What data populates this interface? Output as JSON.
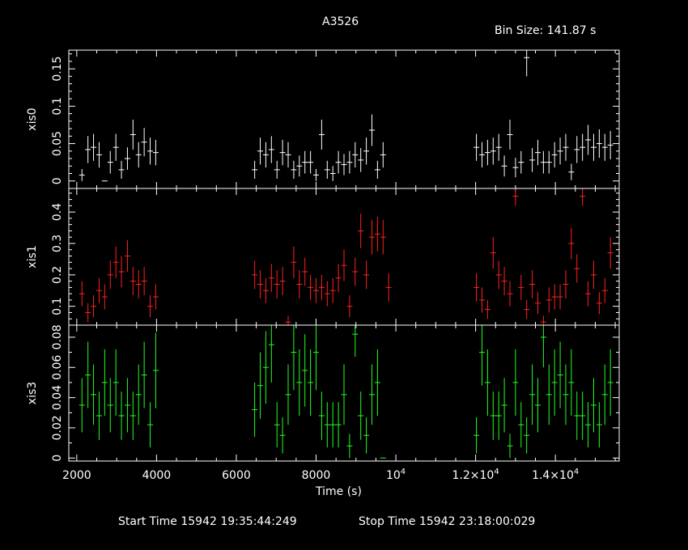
{
  "title": "A3526",
  "bin_size_label": "Bin Size: 141.87 s",
  "xlabel": "Time (s)",
  "footer": {
    "start": "Start Time 15942 19:35:44:249",
    "stop": "Stop Time 15942 23:18:00:029"
  },
  "colors": {
    "background": "#000000",
    "frame": "#ffffff",
    "xis0": "#ffffff",
    "xis1": "#ff2020",
    "xis3": "#20ff20"
  },
  "chart_data": {
    "type": "scatter",
    "x_range": [
      1800,
      15600
    ],
    "x_ticks": [
      {
        "v": 2000,
        "label": "2000"
      },
      {
        "v": 4000,
        "label": "4000"
      },
      {
        "v": 6000,
        "label": "6000"
      },
      {
        "v": 8000,
        "label": "8000"
      },
      {
        "v": 10000,
        "label": "10",
        "exp": "4"
      },
      {
        "v": 12000,
        "label": "1.2×10",
        "exp": "4"
      },
      {
        "v": 14000,
        "label": "1.4×10",
        "exp": "4"
      }
    ],
    "x_minor_step": 500,
    "xerr": 71,
    "panels": [
      {
        "name": "xis0",
        "color": "#ffffff",
        "ylim": [
          -0.01,
          0.175
        ],
        "yticks": [
          {
            "v": 0,
            "label": "0"
          },
          {
            "v": 0.05,
            "label": "0.05"
          },
          {
            "v": 0.1,
            "label": "0.1"
          },
          {
            "v": 0.15,
            "label": "0.15"
          }
        ],
        "minor_step": 0.01,
        "points": [
          [
            2130,
            0.008,
            0.008
          ],
          [
            2280,
            0.042,
            0.018
          ],
          [
            2420,
            0.045,
            0.018
          ],
          [
            2560,
            0.035,
            0.017
          ],
          [
            2700,
            0.0,
            0.0
          ],
          [
            2840,
            0.025,
            0.015
          ],
          [
            2980,
            0.045,
            0.018
          ],
          [
            3120,
            0.015,
            0.012
          ],
          [
            3270,
            0.03,
            0.015
          ],
          [
            3410,
            0.062,
            0.02
          ],
          [
            3550,
            0.035,
            0.017
          ],
          [
            3690,
            0.052,
            0.019
          ],
          [
            3840,
            0.04,
            0.018
          ],
          [
            3980,
            0.038,
            0.017
          ],
          [
            6460,
            0.015,
            0.012
          ],
          [
            6600,
            0.04,
            0.018
          ],
          [
            6740,
            0.035,
            0.017
          ],
          [
            6880,
            0.042,
            0.018
          ],
          [
            7020,
            0.015,
            0.012
          ],
          [
            7160,
            0.038,
            0.017
          ],
          [
            7300,
            0.035,
            0.017
          ],
          [
            7440,
            0.015,
            0.012
          ],
          [
            7580,
            0.02,
            0.014
          ],
          [
            7720,
            0.025,
            0.015
          ],
          [
            7860,
            0.025,
            0.015
          ],
          [
            8000,
            0.008,
            0.008
          ],
          [
            8140,
            0.062,
            0.02
          ],
          [
            8280,
            0.015,
            0.012
          ],
          [
            8420,
            0.01,
            0.01
          ],
          [
            8560,
            0.025,
            0.015
          ],
          [
            8700,
            0.022,
            0.014
          ],
          [
            8840,
            0.025,
            0.015
          ],
          [
            8980,
            0.035,
            0.017
          ],
          [
            9120,
            0.028,
            0.016
          ],
          [
            9260,
            0.04,
            0.018
          ],
          [
            9400,
            0.068,
            0.021
          ],
          [
            9540,
            0.015,
            0.012
          ],
          [
            9680,
            0.035,
            0.017
          ],
          [
            12020,
            0.045,
            0.018
          ],
          [
            12160,
            0.035,
            0.017
          ],
          [
            12300,
            0.038,
            0.017
          ],
          [
            12440,
            0.04,
            0.018
          ],
          [
            12580,
            0.045,
            0.018
          ],
          [
            12720,
            0.02,
            0.014
          ],
          [
            12860,
            0.062,
            0.02
          ],
          [
            13000,
            0.018,
            0.013
          ],
          [
            13140,
            0.025,
            0.015
          ],
          [
            13280,
            0.165,
            0.025
          ],
          [
            13420,
            0.028,
            0.016
          ],
          [
            13560,
            0.038,
            0.017
          ],
          [
            13700,
            0.025,
            0.015
          ],
          [
            13840,
            0.025,
            0.015
          ],
          [
            13980,
            0.035,
            0.017
          ],
          [
            14120,
            0.04,
            0.018
          ],
          [
            14260,
            0.045,
            0.018
          ],
          [
            14400,
            0.012,
            0.011
          ],
          [
            14540,
            0.042,
            0.018
          ],
          [
            14680,
            0.045,
            0.018
          ],
          [
            14820,
            0.055,
            0.02
          ],
          [
            14960,
            0.045,
            0.018
          ],
          [
            15100,
            0.05,
            0.019
          ],
          [
            15240,
            0.045,
            0.018
          ],
          [
            15380,
            0.048,
            0.019
          ]
        ]
      },
      {
        "name": "xis1",
        "color": "#ff2020",
        "ylim": [
          0.04,
          0.475
        ],
        "yticks": [
          {
            "v": 0.1,
            "label": "0.1"
          },
          {
            "v": 0.2,
            "label": "0.2"
          },
          {
            "v": 0.3,
            "label": "0.3"
          },
          {
            "v": 0.4,
            "label": "0.4"
          }
        ],
        "minor_step": 0.02,
        "points": [
          [
            2130,
            0.14,
            0.04
          ],
          [
            2280,
            0.08,
            0.03
          ],
          [
            2420,
            0.1,
            0.035
          ],
          [
            2560,
            0.15,
            0.04
          ],
          [
            2700,
            0.13,
            0.04
          ],
          [
            2840,
            0.2,
            0.045
          ],
          [
            2980,
            0.24,
            0.05
          ],
          [
            3120,
            0.21,
            0.05
          ],
          [
            3270,
            0.26,
            0.05
          ],
          [
            3410,
            0.18,
            0.045
          ],
          [
            3550,
            0.17,
            0.045
          ],
          [
            3690,
            0.18,
            0.045
          ],
          [
            3840,
            0.1,
            0.035
          ],
          [
            3980,
            0.13,
            0.04
          ],
          [
            6460,
            0.2,
            0.045
          ],
          [
            6600,
            0.17,
            0.045
          ],
          [
            6740,
            0.15,
            0.04
          ],
          [
            6880,
            0.19,
            0.045
          ],
          [
            7020,
            0.17,
            0.045
          ],
          [
            7160,
            0.18,
            0.045
          ],
          [
            7300,
            0.05,
            0.02
          ],
          [
            7440,
            0.24,
            0.05
          ],
          [
            7580,
            0.17,
            0.045
          ],
          [
            7720,
            0.21,
            0.045
          ],
          [
            7860,
            0.16,
            0.04
          ],
          [
            8000,
            0.15,
            0.04
          ],
          [
            8140,
            0.16,
            0.04
          ],
          [
            8280,
            0.14,
            0.04
          ],
          [
            8420,
            0.15,
            0.04
          ],
          [
            8560,
            0.19,
            0.045
          ],
          [
            8700,
            0.23,
            0.05
          ],
          [
            8840,
            0.1,
            0.035
          ],
          [
            8980,
            0.21,
            0.045
          ],
          [
            9120,
            0.34,
            0.055
          ],
          [
            9260,
            0.2,
            0.045
          ],
          [
            9400,
            0.32,
            0.055
          ],
          [
            9540,
            0.33,
            0.055
          ],
          [
            9680,
            0.32,
            0.055
          ],
          [
            9820,
            0.16,
            0.045
          ],
          [
            12020,
            0.16,
            0.045
          ],
          [
            12160,
            0.12,
            0.04
          ],
          [
            12300,
            0.09,
            0.03
          ],
          [
            12440,
            0.27,
            0.05
          ],
          [
            12580,
            0.2,
            0.045
          ],
          [
            12720,
            0.18,
            0.045
          ],
          [
            12860,
            0.14,
            0.04
          ],
          [
            13000,
            0.45,
            0.03
          ],
          [
            13140,
            0.16,
            0.04
          ],
          [
            13280,
            0.09,
            0.03
          ],
          [
            13420,
            0.17,
            0.045
          ],
          [
            13560,
            0.11,
            0.035
          ],
          [
            13700,
            0.05,
            0.02
          ],
          [
            13840,
            0.12,
            0.04
          ],
          [
            13980,
            0.13,
            0.04
          ],
          [
            14120,
            0.13,
            0.04
          ],
          [
            14260,
            0.17,
            0.045
          ],
          [
            14400,
            0.3,
            0.05
          ],
          [
            14540,
            0.22,
            0.045
          ],
          [
            14680,
            0.45,
            0.03
          ],
          [
            14820,
            0.14,
            0.04
          ],
          [
            14960,
            0.2,
            0.045
          ],
          [
            15100,
            0.11,
            0.035
          ],
          [
            15240,
            0.15,
            0.04
          ],
          [
            15380,
            0.27,
            0.05
          ]
        ]
      },
      {
        "name": "xis3",
        "color": "#20ff20",
        "ylim": [
          -0.002,
          0.088
        ],
        "yticks": [
          {
            "v": 0,
            "label": "0"
          },
          {
            "v": 0.02,
            "label": "0.02"
          },
          {
            "v": 0.04,
            "label": "0.04"
          },
          {
            "v": 0.06,
            "label": "0.06"
          },
          {
            "v": 0.08,
            "label": "0.08"
          }
        ],
        "minor_step": 0.01,
        "points": [
          [
            2130,
            0.035,
            0.018
          ],
          [
            2280,
            0.055,
            0.022
          ],
          [
            2420,
            0.042,
            0.02
          ],
          [
            2560,
            0.028,
            0.016
          ],
          [
            2700,
            0.05,
            0.022
          ],
          [
            2840,
            0.035,
            0.018
          ],
          [
            2980,
            0.05,
            0.022
          ],
          [
            3120,
            0.028,
            0.016
          ],
          [
            3270,
            0.035,
            0.018
          ],
          [
            3410,
            0.028,
            0.016
          ],
          [
            3550,
            0.042,
            0.02
          ],
          [
            3690,
            0.055,
            0.022
          ],
          [
            3840,
            0.022,
            0.015
          ],
          [
            3980,
            0.058,
            0.025
          ],
          [
            6460,
            0.032,
            0.018
          ],
          [
            6600,
            0.048,
            0.022
          ],
          [
            6740,
            0.06,
            0.024
          ],
          [
            6880,
            0.075,
            0.025
          ],
          [
            7020,
            0.022,
            0.015
          ],
          [
            7160,
            0.015,
            0.012
          ],
          [
            7300,
            0.042,
            0.02
          ],
          [
            7440,
            0.07,
            0.025
          ],
          [
            7580,
            0.05,
            0.022
          ],
          [
            7720,
            0.058,
            0.024
          ],
          [
            7860,
            0.05,
            0.022
          ],
          [
            8000,
            0.07,
            0.025
          ],
          [
            8140,
            0.028,
            0.016
          ],
          [
            8280,
            0.022,
            0.015
          ],
          [
            8420,
            0.022,
            0.015
          ],
          [
            8560,
            0.022,
            0.015
          ],
          [
            8700,
            0.042,
            0.02
          ],
          [
            8840,
            0.008,
            0.008
          ],
          [
            8980,
            0.082,
            0.015
          ],
          [
            9120,
            0.028,
            0.016
          ],
          [
            9260,
            0.015,
            0.012
          ],
          [
            9400,
            0.042,
            0.02
          ],
          [
            9540,
            0.05,
            0.022
          ],
          [
            9680,
            0.0,
            0.0
          ],
          [
            12020,
            0.015,
            0.012
          ],
          [
            12160,
            0.07,
            0.022
          ],
          [
            12300,
            0.05,
            0.022
          ],
          [
            12440,
            0.028,
            0.016
          ],
          [
            12580,
            0.028,
            0.016
          ],
          [
            12720,
            0.035,
            0.018
          ],
          [
            12860,
            0.008,
            0.008
          ],
          [
            13000,
            0.05,
            0.022
          ],
          [
            13140,
            0.022,
            0.015
          ],
          [
            13280,
            0.015,
            0.012
          ],
          [
            13420,
            0.042,
            0.02
          ],
          [
            13560,
            0.035,
            0.018
          ],
          [
            13700,
            0.08,
            0.02
          ],
          [
            13840,
            0.042,
            0.02
          ],
          [
            13980,
            0.05,
            0.022
          ],
          [
            14120,
            0.055,
            0.022
          ],
          [
            14260,
            0.042,
            0.02
          ],
          [
            14400,
            0.05,
            0.022
          ],
          [
            14540,
            0.028,
            0.016
          ],
          [
            14680,
            0.028,
            0.016
          ],
          [
            14820,
            0.022,
            0.015
          ],
          [
            14960,
            0.035,
            0.018
          ],
          [
            15100,
            0.022,
            0.015
          ],
          [
            15240,
            0.042,
            0.02
          ],
          [
            15380,
            0.05,
            0.022
          ]
        ]
      }
    ]
  }
}
